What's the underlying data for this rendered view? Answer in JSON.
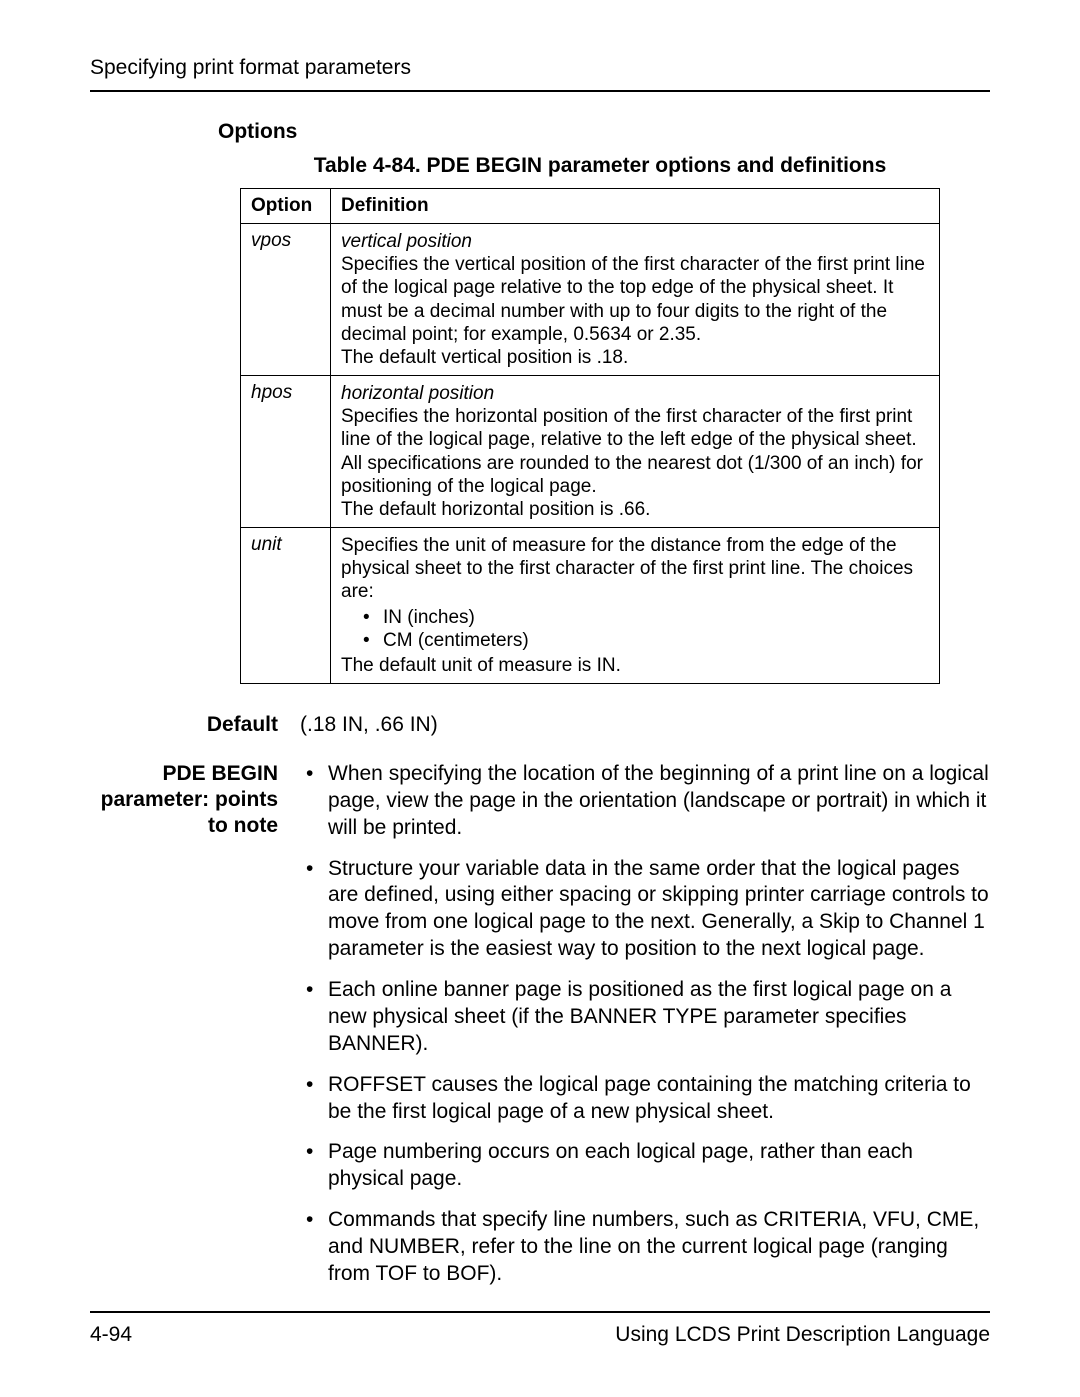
{
  "header": {
    "running_title": "Specifying print format parameters"
  },
  "options_section": {
    "heading": "Options",
    "table_caption": "Table 4-84. PDE BEGIN parameter options and definitions",
    "columns": {
      "option": "Option",
      "definition": "Definition"
    },
    "rows": [
      {
        "option": "vpos",
        "term": "vertical position",
        "body": "Specifies the vertical position of the first character of the first print line of the logical page relative to the top edge of the physical sheet. It must be a decimal number with up to four digits to the right of the decimal point; for example, 0.5634 or 2.35.",
        "default_line": "The default vertical position is .18."
      },
      {
        "option": "hpos",
        "term": "horizontal position",
        "body": "Specifies the horizontal position of the first character of the first print line of the logical page, relative to the left edge of the physical sheet. All specifications are rounded to the nearest dot (1/300 of an inch) for positioning of the logical page.",
        "default_line": "The default horizontal position is .66."
      },
      {
        "option": "unit",
        "term": "",
        "body": "Specifies the unit of measure for the distance from the edge of the physical sheet to the first character of the first print line. The choices are:",
        "choices": [
          "IN (inches)",
          "CM (centimeters)"
        ],
        "default_line": "The default unit of measure is IN."
      }
    ]
  },
  "default_row": {
    "label": "Default",
    "value": "(.18 IN, .66 IN)"
  },
  "notes_row": {
    "label_line1": "PDE BEGIN",
    "label_line2": "parameter: points",
    "label_line3": "to note",
    "items": [
      "When specifying the location of the beginning of a print line on a logical page, view the page in the orientation (landscape or portrait) in which it will be printed.",
      "Structure your variable data in the same order that the logical pages are defined, using either spacing or skipping printer carriage controls to move from one logical page to the next. Generally, a Skip to Channel 1 parameter is the easiest way to position to the next logical page.",
      "Each online banner page is positioned as the first logical page on a new physical sheet (if the BANNER TYPE parameter specifies BANNER).",
      "ROFFSET causes the logical page containing the matching criteria to be the first logical page of a new physical sheet.",
      "Page numbering occurs on each logical page, rather than each physical page.",
      "Commands that specify line numbers, such as CRITERIA, VFU, CME, and NUMBER, refer to the line on the current logical page (ranging from TOF to BOF)."
    ]
  },
  "footer": {
    "page_num": "4-94",
    "doc_title": "Using LCDS Print Description Language"
  }
}
